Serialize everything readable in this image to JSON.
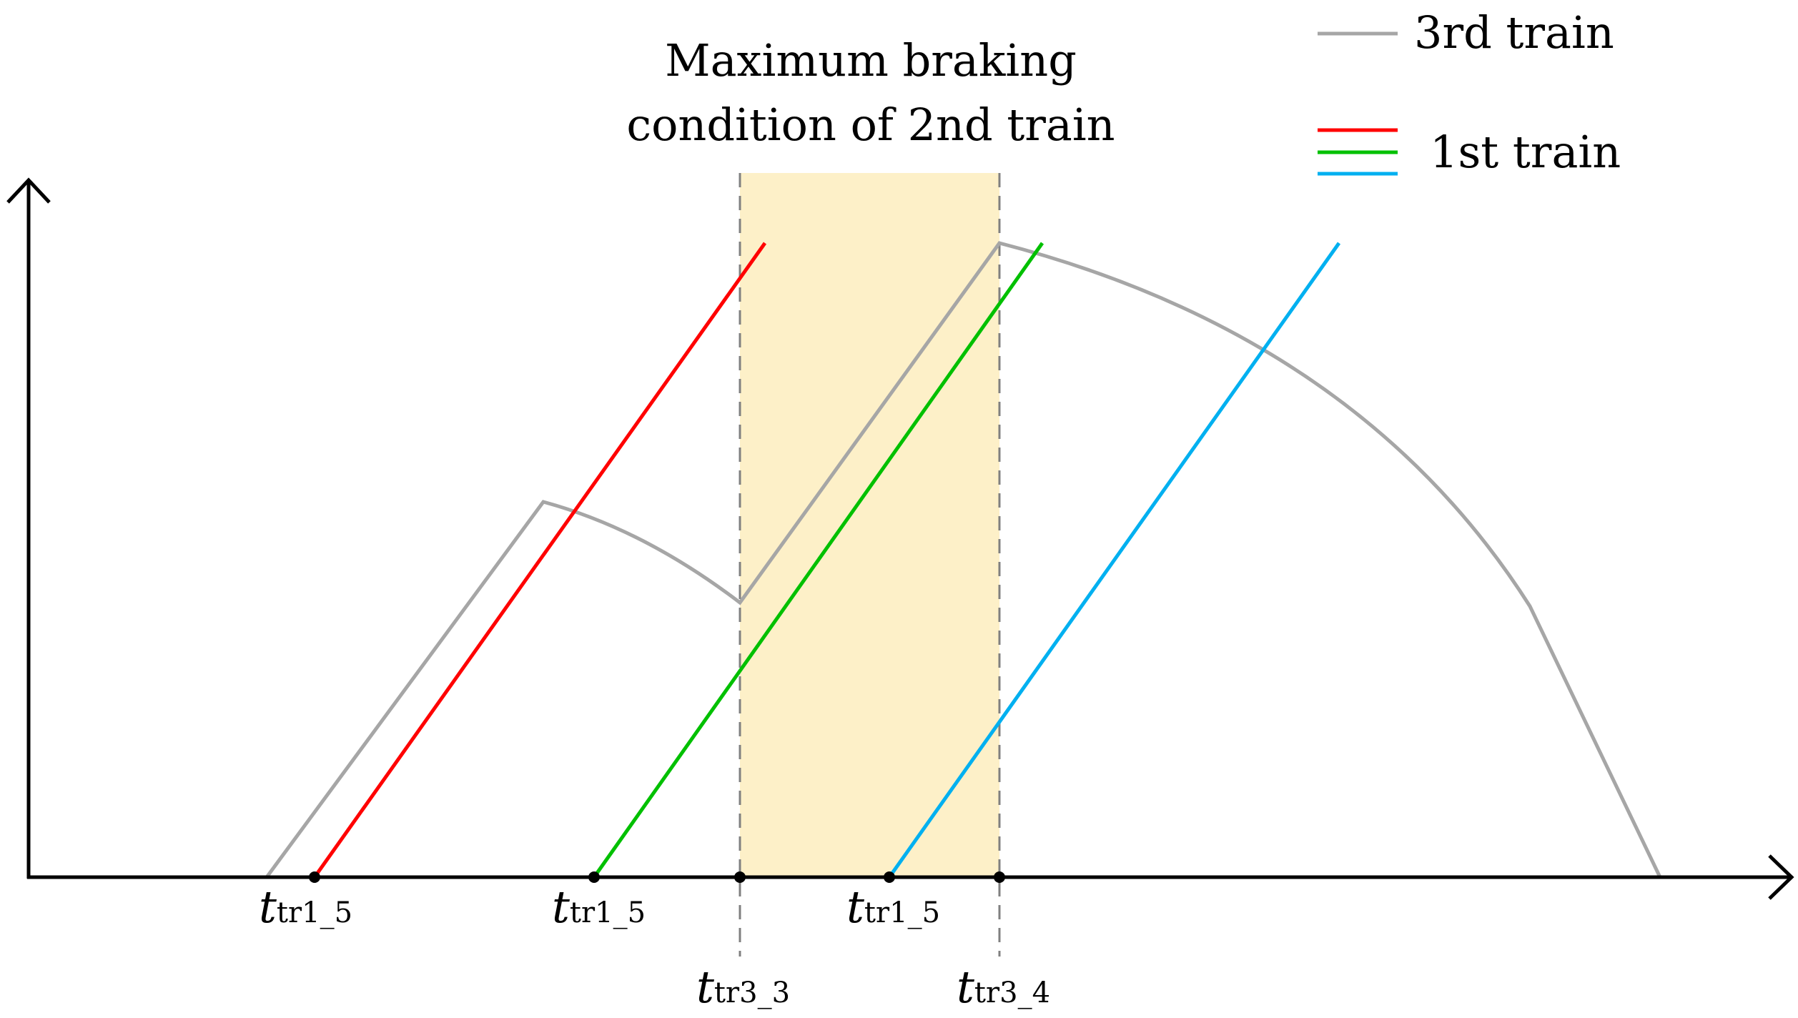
{
  "annotation": {
    "line1": "Maximum braking",
    "line2": "condition of 2nd train"
  },
  "legend": {
    "third_train": "3rd train",
    "first_train": "1st train"
  },
  "colors": {
    "third_train": "#a6a6a6",
    "red": "#ff0000",
    "green": "#00c000",
    "blue": "#00b0f0",
    "highlight": "#fdf0c8",
    "dash": "#808080",
    "axis": "#000000"
  },
  "labels": {
    "a": {
      "t": "t",
      "sub": "tr1_5"
    },
    "b": {
      "t": "t",
      "sub": "tr1_5"
    },
    "c": {
      "t": "t",
      "sub": "tr1_5"
    },
    "d": {
      "t": "t",
      "sub": "tr3_3"
    },
    "e": {
      "t": "t",
      "sub": "tr3_4"
    }
  }
}
